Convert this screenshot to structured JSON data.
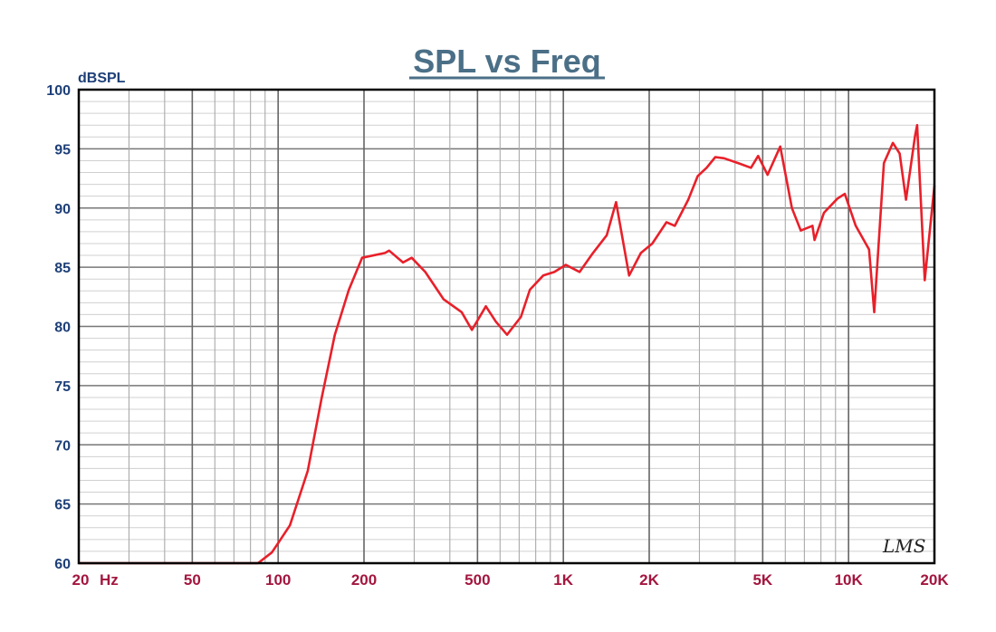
{
  "chart_data": {
    "type": "line",
    "title": "SPL vs Freq",
    "xlabel": "Hz",
    "ylabel": "dBSPL",
    "xscale": "log",
    "xlim": [
      20,
      20000
    ],
    "ylim": [
      60,
      100
    ],
    "grid": true,
    "x_ticks": [
      {
        "value": 20,
        "label": "20"
      },
      {
        "value": 50,
        "label": "50"
      },
      {
        "value": 100,
        "label": "100"
      },
      {
        "value": 200,
        "label": "200"
      },
      {
        "value": 500,
        "label": "500"
      },
      {
        "value": 1000,
        "label": "1K"
      },
      {
        "value": 2000,
        "label": "2K"
      },
      {
        "value": 5000,
        "label": "5K"
      },
      {
        "value": 10000,
        "label": "10K"
      },
      {
        "value": 20000,
        "label": "20K"
      }
    ],
    "x_unit_label": "Hz",
    "y_ticks": [
      60,
      65,
      70,
      75,
      80,
      85,
      90,
      95,
      100
    ],
    "watermark": "LMS",
    "series": [
      {
        "name": "SPL",
        "color": "#e8202a",
        "x": [
          20,
          85,
          95,
          100,
          110,
          127,
          142,
          158,
          177,
          197,
          237,
          245,
          274,
          294,
          328,
          380,
          440,
          478,
          535,
          580,
          635,
          710,
          763,
          850,
          930,
          1020,
          1140,
          1270,
          1420,
          1530,
          1700,
          1870,
          2050,
          2300,
          2460,
          2740,
          2960,
          3180,
          3410,
          3660,
          4100,
          4550,
          4820,
          5200,
          5760,
          6330,
          6800,
          7470,
          7600,
          8200,
          9140,
          9700,
          10600,
          11800,
          12300,
          13300,
          14300,
          15100,
          15900,
          17100,
          17400,
          18500,
          20000
        ],
        "y": [
          60,
          60,
          60.9,
          61.7,
          63.2,
          67.8,
          73.9,
          79.3,
          83.1,
          85.8,
          86.2,
          86.4,
          85.4,
          85.8,
          84.6,
          82.3,
          81.2,
          79.7,
          81.7,
          80.4,
          79.3,
          80.8,
          83.1,
          84.3,
          84.6,
          85.2,
          84.6,
          86.2,
          87.7,
          90.5,
          84.3,
          86.2,
          87.0,
          88.8,
          88.5,
          90.7,
          92.7,
          93.4,
          94.3,
          94.2,
          93.8,
          93.4,
          94.4,
          92.8,
          95.2,
          90.0,
          88.1,
          88.5,
          87.3,
          89.6,
          90.8,
          91.2,
          88.5,
          86.5,
          81.2,
          93.8,
          95.5,
          94.6,
          90.7,
          96.1,
          97.0,
          83.9,
          91.9
        ]
      }
    ]
  }
}
